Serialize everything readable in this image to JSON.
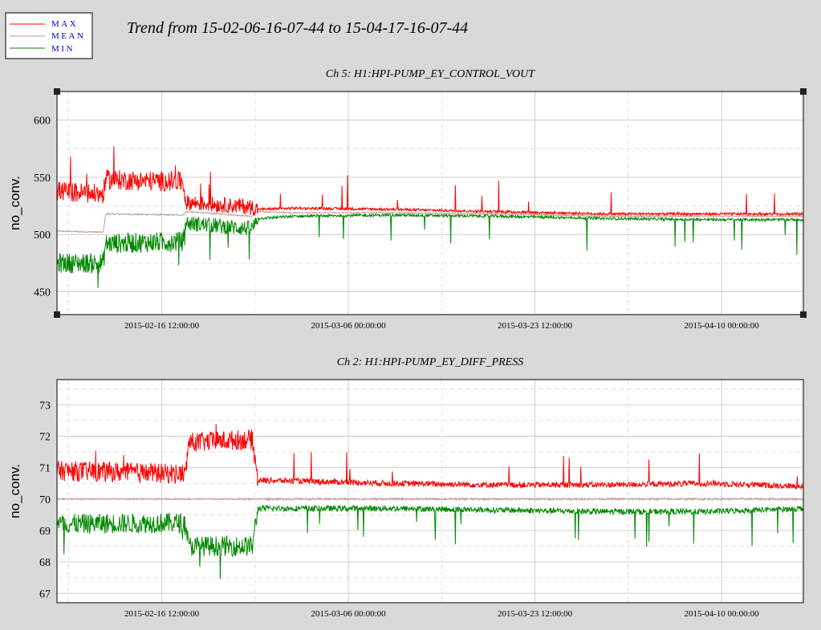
{
  "title": "Trend from 15-02-06-16-07-44 to 15-04-17-16-07-44",
  "legend": [
    {
      "label": "MAX",
      "color": "#ff0000"
    },
    {
      "label": "MEAN",
      "color": "#c49a9a"
    },
    {
      "label": "MIN",
      "color": "#008800"
    }
  ],
  "colors": {
    "max": "#ff0000",
    "mean": "#c49a9a",
    "min": "#008800",
    "legend_text": "#0000cc"
  },
  "chart_data": [
    {
      "type": "line",
      "title": "Ch 5: H1:HPI-PUMP_EY_CONTROL_VOUT",
      "ylabel": "no_conv.",
      "xlim": [
        "2015-02-06 16:07:44",
        "2015-04-17 16:07:44"
      ],
      "ylim": [
        430,
        625
      ],
      "yticks": [
        450,
        500,
        550,
        600
      ],
      "xtick_labels": [
        "2015-02-16 12:00:00",
        "2015-03-06 00:00:00",
        "2015-03-23 12:00:00",
        "2015-04-10 00:00:00"
      ],
      "grid": true,
      "x": [
        "2015-02-06 16:07:44",
        "2015-02-11 00:00:00",
        "2015-02-11 06:00:00",
        "2015-02-18 12:00:00",
        "2015-02-18 18:00:00",
        "2015-02-25 00:00:00",
        "2015-02-25 12:00:00",
        "2015-03-01 00:00:00",
        "2015-03-10 00:00:00",
        "2015-03-20 00:00:00",
        "2015-03-30 00:00:00",
        "2015-04-09 00:00:00",
        "2015-04-17 16:07:44"
      ],
      "series": [
        {
          "name": "MAX",
          "values": [
            538,
            535,
            548,
            546,
            528,
            524,
            522,
            523,
            522,
            520,
            518,
            518,
            518
          ]
        },
        {
          "name": "MEAN",
          "values": [
            503,
            502,
            518,
            517,
            520,
            516,
            520,
            519,
            519,
            518,
            516,
            516,
            516
          ]
        },
        {
          "name": "MIN",
          "values": [
            475,
            475,
            492,
            494,
            510,
            505,
            514,
            516,
            517,
            516,
            514,
            513,
            513
          ]
        }
      ]
    },
    {
      "type": "line",
      "title": "Ch 2: H1:HPI-PUMP_EY_DIFF_PRESS",
      "ylabel": "no_conv.",
      "xlim": [
        "2015-02-06 16:07:44",
        "2015-04-17 16:07:44"
      ],
      "ylim": [
        66.7,
        73.8
      ],
      "yticks": [
        67,
        68,
        69,
        70,
        71,
        72,
        73
      ],
      "xtick_labels": [
        "2015-02-16 12:00:00",
        "2015-03-06 00:00:00",
        "2015-03-23 12:00:00",
        "2015-04-10 00:00:00"
      ],
      "grid": true,
      "x": [
        "2015-02-06 16:07:44",
        "2015-02-18 18:00:00",
        "2015-02-19 00:00:00",
        "2015-02-25 00:00:00",
        "2015-02-25 12:00:00",
        "2015-03-10 00:00:00",
        "2015-03-20 00:00:00",
        "2015-03-30 00:00:00",
        "2015-04-09 00:00:00",
        "2015-04-17 16:07:44"
      ],
      "series": [
        {
          "name": "MAX",
          "values": [
            70.9,
            70.8,
            71.8,
            71.9,
            70.6,
            70.5,
            70.45,
            70.45,
            70.5,
            70.4
          ]
        },
        {
          "name": "MEAN",
          "values": [
            70.0,
            70.0,
            70.0,
            70.0,
            70.0,
            70.0,
            70.0,
            70.0,
            70.0,
            70.0
          ]
        },
        {
          "name": "MIN",
          "values": [
            69.2,
            69.25,
            68.5,
            68.5,
            69.7,
            69.7,
            69.65,
            69.6,
            69.6,
            69.7
          ]
        }
      ]
    }
  ]
}
